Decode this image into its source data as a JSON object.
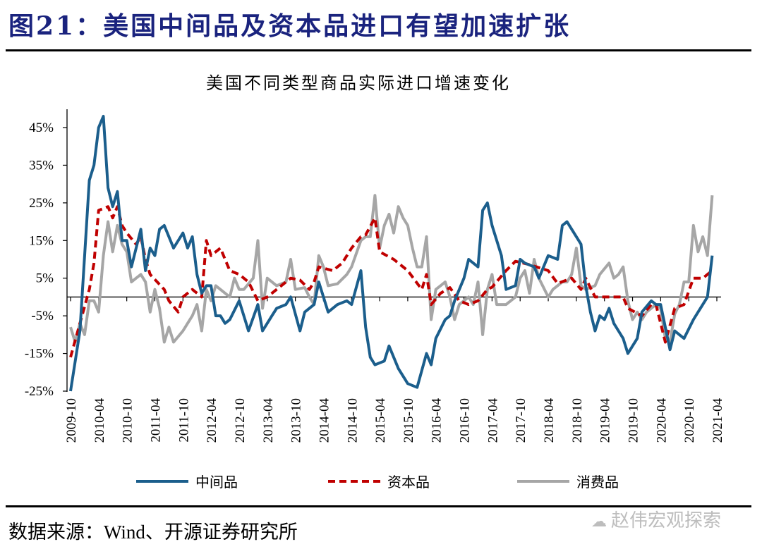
{
  "figure": {
    "title": "图21：美国中间品及资本品进口有望加速扩张",
    "source": "数据来源：Wind、开源证券研究所",
    "watermark": "赵伟宏观探索"
  },
  "chart_data": {
    "type": "line",
    "title": "美国不同类型商品实际进口增速变化",
    "xlabel": "",
    "ylabel": "",
    "x_unit": "month index from 2009-10",
    "x_start": "2009-10",
    "xlim": [
      0,
      138
    ],
    "ylim": [
      -25,
      45
    ],
    "y_ticks": [
      -25,
      -15,
      -5,
      5,
      15,
      25,
      35,
      45
    ],
    "y_tick_labels": [
      "-25%",
      "-15%",
      "-5%",
      "5%",
      "15%",
      "25%",
      "35%",
      "45%"
    ],
    "x_tick_labels": [
      "2009-10",
      "2010-04",
      "2010-10",
      "2011-04",
      "2011-10",
      "2012-04",
      "2012-10",
      "2013-04",
      "2013-10",
      "2014-04",
      "2014-10",
      "2015-04",
      "2015-10",
      "2016-04",
      "2016-10",
      "2017-04",
      "2017-10",
      "2018-04",
      "2018-10",
      "2019-04",
      "2019-10",
      "2020-04",
      "2020-10",
      "2021-04"
    ],
    "grid": false,
    "legend_position": "bottom",
    "series": [
      {
        "name": "中间品",
        "color": "#1b5e8c",
        "dash": "solid",
        "points": [
          [
            0,
            -25
          ],
          [
            2,
            -9
          ],
          [
            4,
            31
          ],
          [
            5,
            35
          ],
          [
            6,
            45
          ],
          [
            7,
            48
          ],
          [
            8,
            29
          ],
          [
            9,
            24
          ],
          [
            10,
            28
          ],
          [
            11,
            15
          ],
          [
            12,
            15
          ],
          [
            13,
            8
          ],
          [
            15,
            18
          ],
          [
            16,
            7
          ],
          [
            17,
            13
          ],
          [
            18,
            11
          ],
          [
            19,
            18
          ],
          [
            20,
            19
          ],
          [
            22,
            13
          ],
          [
            24,
            17
          ],
          [
            25,
            13
          ],
          [
            26,
            16
          ],
          [
            27,
            6
          ],
          [
            28,
            1
          ],
          [
            29,
            3
          ],
          [
            30,
            3
          ],
          [
            31,
            -5
          ],
          [
            32,
            -5
          ],
          [
            33,
            -7
          ],
          [
            34,
            -6
          ],
          [
            36,
            -1
          ],
          [
            38,
            -9
          ],
          [
            40,
            -2
          ],
          [
            41,
            -9
          ],
          [
            43,
            -5
          ],
          [
            44,
            -3
          ],
          [
            46,
            -2
          ],
          [
            47,
            0
          ],
          [
            49,
            -9
          ],
          [
            50,
            -4
          ],
          [
            52,
            -2
          ],
          [
            53,
            4
          ],
          [
            55,
            -4
          ],
          [
            57,
            -2
          ],
          [
            59,
            -1
          ],
          [
            60,
            -2
          ],
          [
            62,
            7
          ],
          [
            63,
            -8
          ],
          [
            64,
            -16
          ],
          [
            65,
            -18
          ],
          [
            67,
            -17
          ],
          [
            68,
            -13
          ],
          [
            70,
            -19
          ],
          [
            72,
            -23
          ],
          [
            74,
            -24
          ],
          [
            76,
            -15
          ],
          [
            77,
            -18
          ],
          [
            78,
            -11
          ],
          [
            80,
            -6
          ],
          [
            81,
            -5
          ],
          [
            82,
            -1
          ],
          [
            84,
            5
          ],
          [
            85,
            10
          ],
          [
            87,
            8
          ],
          [
            88,
            23
          ],
          [
            89,
            25
          ],
          [
            90,
            19
          ],
          [
            92,
            11
          ],
          [
            93,
            2
          ],
          [
            95,
            3
          ],
          [
            96,
            10
          ],
          [
            97,
            9
          ],
          [
            99,
            8
          ],
          [
            100,
            5
          ],
          [
            102,
            11
          ],
          [
            104,
            10
          ],
          [
            105,
            19
          ],
          [
            106,
            20
          ],
          [
            108,
            16
          ],
          [
            109,
            14
          ],
          [
            110,
            3
          ],
          [
            111,
            -4
          ],
          [
            112,
            -9
          ],
          [
            113,
            -5
          ],
          [
            114,
            -6
          ],
          [
            115,
            -3
          ],
          [
            116,
            -7
          ],
          [
            117,
            -9
          ],
          [
            118,
            -11
          ],
          [
            119,
            -15
          ],
          [
            121,
            -11
          ],
          [
            122,
            -4
          ],
          [
            124,
            -1
          ],
          [
            125,
            -2
          ],
          [
            126,
            -2
          ],
          [
            128,
            -14
          ],
          [
            129,
            -9
          ],
          [
            130,
            -10
          ],
          [
            131,
            -11
          ],
          [
            133,
            -6
          ],
          [
            134,
            -4
          ],
          [
            136,
            0
          ],
          [
            137,
            11
          ]
        ]
      },
      {
        "name": "资本品",
        "color": "#c00000",
        "dash": "dashed",
        "points": [
          [
            0,
            -16
          ],
          [
            2,
            -7
          ],
          [
            4,
            2
          ],
          [
            5,
            9
          ],
          [
            6,
            23
          ],
          [
            8,
            24
          ],
          [
            9,
            21
          ],
          [
            10,
            24
          ],
          [
            11,
            19
          ],
          [
            12,
            17
          ],
          [
            14,
            14
          ],
          [
            15,
            16
          ],
          [
            16,
            10
          ],
          [
            17,
            6
          ],
          [
            20,
            2
          ],
          [
            21,
            -1
          ],
          [
            23,
            -4
          ],
          [
            24,
            0
          ],
          [
            26,
            2
          ],
          [
            28,
            0
          ],
          [
            29,
            15
          ],
          [
            30,
            11
          ],
          [
            32,
            13
          ],
          [
            33,
            10
          ],
          [
            34,
            7
          ],
          [
            36,
            6
          ],
          [
            38,
            4
          ],
          [
            40,
            -1
          ],
          [
            42,
            0
          ],
          [
            44,
            2
          ],
          [
            47,
            5
          ],
          [
            49,
            4.5
          ],
          [
            51,
            2
          ],
          [
            52,
            4
          ],
          [
            53,
            8
          ],
          [
            56,
            7
          ],
          [
            58,
            9
          ],
          [
            60,
            13
          ],
          [
            62,
            16
          ],
          [
            63,
            16.5
          ],
          [
            65,
            21
          ],
          [
            66,
            12
          ],
          [
            69,
            10
          ],
          [
            72,
            7
          ],
          [
            75,
            2
          ],
          [
            76,
            6
          ],
          [
            77,
            -2
          ],
          [
            79,
            1
          ],
          [
            81,
            2.5
          ],
          [
            83,
            -1
          ],
          [
            85,
            -2
          ],
          [
            87,
            -1
          ],
          [
            89,
            2
          ],
          [
            90,
            2.6
          ],
          [
            93,
            7
          ],
          [
            95,
            9.5
          ],
          [
            98,
            8.6
          ],
          [
            102,
            7
          ],
          [
            104,
            3.6
          ],
          [
            107,
            5
          ],
          [
            109,
            2
          ],
          [
            110,
            5
          ],
          [
            112,
            0
          ],
          [
            115,
            0
          ],
          [
            118,
            0
          ],
          [
            119,
            -3
          ],
          [
            122,
            -5
          ],
          [
            124,
            -2
          ],
          [
            125,
            -2
          ],
          [
            127,
            -12
          ],
          [
            129,
            -3
          ],
          [
            131,
            -2
          ],
          [
            133,
            5
          ],
          [
            135,
            5
          ],
          [
            137,
            7
          ]
        ]
      },
      {
        "name": "消费品",
        "color": "#a6a6a6",
        "dash": "solid",
        "points": [
          [
            0,
            -8
          ],
          [
            1,
            -12
          ],
          [
            2,
            -7
          ],
          [
            3,
            -10
          ],
          [
            4,
            -1
          ],
          [
            5,
            -1
          ],
          [
            6,
            -4
          ],
          [
            7,
            11
          ],
          [
            8,
            20
          ],
          [
            9,
            12
          ],
          [
            10,
            19
          ],
          [
            11,
            14
          ],
          [
            12,
            12
          ],
          [
            13,
            4
          ],
          [
            14,
            5
          ],
          [
            15,
            6
          ],
          [
            16,
            4
          ],
          [
            17,
            -4
          ],
          [
            18,
            2
          ],
          [
            19,
            -3
          ],
          [
            20,
            -12
          ],
          [
            21,
            -8
          ],
          [
            22,
            -12
          ],
          [
            24,
            -9
          ],
          [
            25,
            -7
          ],
          [
            26,
            -5
          ],
          [
            27,
            -2
          ],
          [
            28,
            -9
          ],
          [
            29,
            2
          ],
          [
            30,
            -1
          ],
          [
            31,
            3
          ],
          [
            32,
            2
          ],
          [
            34,
            0
          ],
          [
            35,
            5
          ],
          [
            36,
            2
          ],
          [
            37,
            2
          ],
          [
            39,
            5
          ],
          [
            40,
            15
          ],
          [
            41,
            -3
          ],
          [
            42,
            5
          ],
          [
            44,
            3
          ],
          [
            46,
            4
          ],
          [
            47,
            10
          ],
          [
            48,
            2
          ],
          [
            50,
            2.5
          ],
          [
            51,
            0
          ],
          [
            52,
            -2
          ],
          [
            53,
            11
          ],
          [
            54,
            8
          ],
          [
            55,
            3
          ],
          [
            57,
            3.5
          ],
          [
            59,
            6
          ],
          [
            60,
            8
          ],
          [
            62,
            15
          ],
          [
            63,
            16
          ],
          [
            64,
            16
          ],
          [
            65,
            27
          ],
          [
            66,
            13
          ],
          [
            67,
            19
          ],
          [
            68,
            22
          ],
          [
            69,
            17
          ],
          [
            70,
            24
          ],
          [
            71,
            21
          ],
          [
            72,
            19
          ],
          [
            73,
            13
          ],
          [
            74,
            8
          ],
          [
            75,
            8
          ],
          [
            76,
            16
          ],
          [
            77,
            -6
          ],
          [
            78,
            2
          ],
          [
            79,
            3
          ],
          [
            80,
            4
          ],
          [
            81,
            0
          ],
          [
            82,
            -6
          ],
          [
            83,
            -2
          ],
          [
            85,
            0
          ],
          [
            86,
            -2
          ],
          [
            87,
            4
          ],
          [
            88,
            -10
          ],
          [
            89,
            2
          ],
          [
            90,
            6
          ],
          [
            91,
            -2
          ],
          [
            93,
            -2
          ],
          [
            95,
            0
          ],
          [
            96,
            5
          ],
          [
            97,
            7
          ],
          [
            98,
            1
          ],
          [
            99,
            10
          ],
          [
            100,
            5
          ],
          [
            102,
            0
          ],
          [
            103,
            2
          ],
          [
            105,
            4
          ],
          [
            106,
            4
          ],
          [
            107,
            6
          ],
          [
            108,
            13
          ],
          [
            109,
            3
          ],
          [
            110,
            2
          ],
          [
            112,
            3
          ],
          [
            113,
            6
          ],
          [
            115,
            9
          ],
          [
            116,
            5
          ],
          [
            117,
            6
          ],
          [
            118,
            8
          ],
          [
            119,
            -1
          ],
          [
            120,
            -6
          ],
          [
            121,
            -4
          ],
          [
            122,
            -6
          ],
          [
            123,
            -4
          ],
          [
            125,
            -2
          ],
          [
            126,
            -3
          ],
          [
            127,
            -11
          ],
          [
            128,
            -12
          ],
          [
            129,
            -4.5
          ],
          [
            130,
            -2
          ],
          [
            131,
            4
          ],
          [
            132,
            4
          ],
          [
            133,
            19
          ],
          [
            134,
            12
          ],
          [
            135,
            16
          ],
          [
            136,
            11
          ],
          [
            137,
            27
          ]
        ]
      }
    ]
  }
}
